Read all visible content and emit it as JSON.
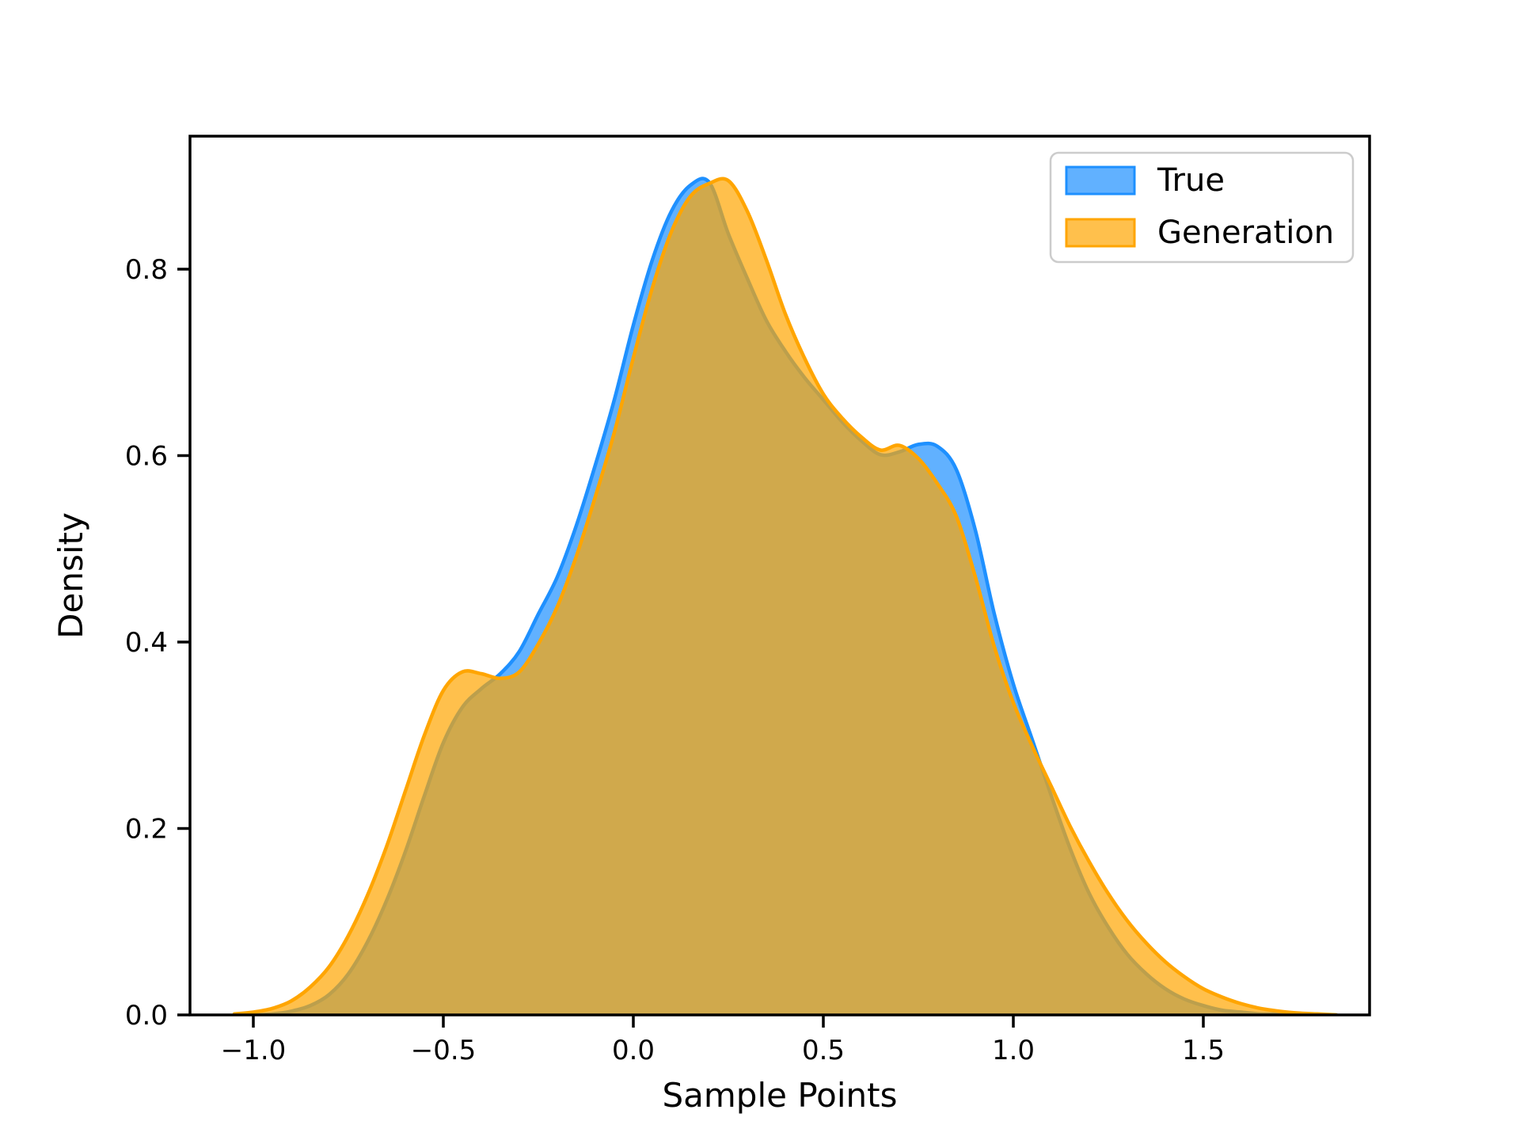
{
  "figure": {
    "background": "#ffffff",
    "frame_color": "#000000"
  },
  "axes": {
    "xlabel": "Sample Points",
    "ylabel": "Density",
    "xlim": [
      -1.1667,
      1.9375
    ],
    "ylim": [
      0,
      0.9427
    ],
    "xticks": {
      "values": [
        -1.0,
        -0.5,
        0.0,
        0.5,
        1.0,
        1.5
      ],
      "labels": [
        "−1.0",
        "−0.5",
        "0.0",
        "0.5",
        "1.0",
        "1.5"
      ]
    },
    "yticks": {
      "values": [
        0.0,
        0.2,
        0.4,
        0.6,
        0.8
      ],
      "labels": [
        "0.0",
        "0.2",
        "0.4",
        "0.6",
        "0.8"
      ]
    },
    "grid": false
  },
  "legend": {
    "position": "upper-right",
    "entries": [
      {
        "label": "True",
        "color": "#1E90FF"
      },
      {
        "label": "Generation",
        "color": "#FFA500"
      }
    ]
  },
  "chart_data": {
    "type": "area",
    "subtype": "kde-density",
    "title": "",
    "xlabel": "Sample Points",
    "ylabel": "Density",
    "xlim": [
      -1.1667,
      1.9375
    ],
    "ylim": [
      0,
      0.9427
    ],
    "legend_position": "upper right",
    "grid": false,
    "fill_opacity": 0.7,
    "overlap_color": "#D0A94D",
    "x": [
      -1.05,
      -1.0,
      -0.95,
      -0.9,
      -0.85,
      -0.8,
      -0.75,
      -0.7,
      -0.65,
      -0.6,
      -0.55,
      -0.5,
      -0.45,
      -0.4,
      -0.35,
      -0.3,
      -0.25,
      -0.2,
      -0.15,
      -0.1,
      -0.05,
      0.0,
      0.05,
      0.1,
      0.15,
      0.2,
      0.25,
      0.3,
      0.35,
      0.4,
      0.45,
      0.5,
      0.55,
      0.6,
      0.65,
      0.7,
      0.75,
      0.8,
      0.85,
      0.9,
      0.95,
      1.0,
      1.05,
      1.1,
      1.15,
      1.2,
      1.25,
      1.3,
      1.35,
      1.4,
      1.45,
      1.5,
      1.55,
      1.6,
      1.65,
      1.7,
      1.75,
      1.8,
      1.85
    ],
    "series": [
      {
        "name": "True",
        "color": "#1E90FF",
        "peak": {
          "x": 0.17,
          "density": 0.895
        },
        "values": [
          0,
          0,
          0.001,
          0.004,
          0.01,
          0.022,
          0.044,
          0.078,
          0.122,
          0.175,
          0.235,
          0.292,
          0.33,
          0.35,
          0.366,
          0.39,
          0.43,
          0.47,
          0.525,
          0.59,
          0.66,
          0.74,
          0.81,
          0.862,
          0.89,
          0.893,
          0.838,
          0.79,
          0.745,
          0.712,
          0.684,
          0.66,
          0.636,
          0.616,
          0.601,
          0.604,
          0.612,
          0.61,
          0.585,
          0.52,
          0.43,
          0.355,
          0.295,
          0.235,
          0.178,
          0.13,
          0.094,
          0.065,
          0.044,
          0.028,
          0.017,
          0.01,
          0.005,
          0.003,
          0.001,
          0.001,
          0,
          0,
          0
        ]
      },
      {
        "name": "Generation",
        "color": "#FFA500",
        "peak": {
          "x": 0.23,
          "density": 0.895
        },
        "values": [
          0.001,
          0.003,
          0.007,
          0.015,
          0.03,
          0.052,
          0.085,
          0.128,
          0.18,
          0.24,
          0.3,
          0.348,
          0.368,
          0.366,
          0.361,
          0.368,
          0.398,
          0.438,
          0.492,
          0.556,
          0.625,
          0.705,
          0.78,
          0.84,
          0.878,
          0.892,
          0.895,
          0.862,
          0.81,
          0.752,
          0.705,
          0.666,
          0.64,
          0.62,
          0.606,
          0.611,
          0.597,
          0.57,
          0.535,
          0.47,
          0.395,
          0.335,
          0.288,
          0.245,
          0.202,
          0.164,
          0.13,
          0.101,
          0.077,
          0.057,
          0.041,
          0.028,
          0.019,
          0.012,
          0.007,
          0.004,
          0.002,
          0.001,
          0
        ]
      }
    ]
  }
}
